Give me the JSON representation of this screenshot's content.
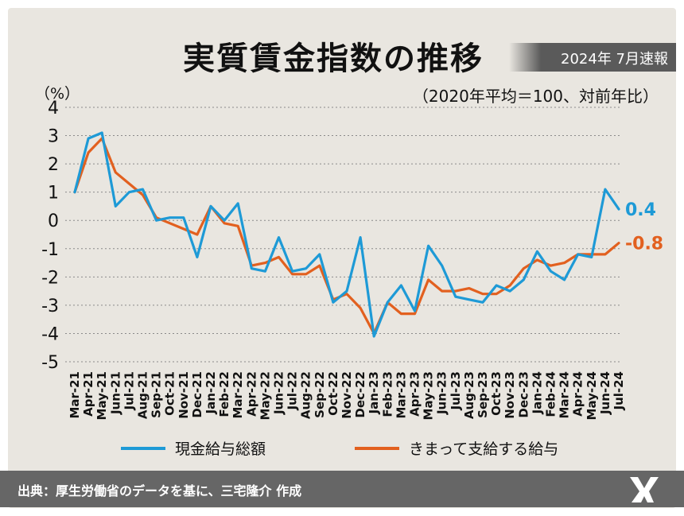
{
  "header": {
    "title": "実質賃金指数の推移",
    "badge": "2024年 7月速報",
    "subtitle": "（2020年平均＝100、対前年比）"
  },
  "footer": {
    "source": "出典：厚生労働省のデータを基に、三宅隆介 作成"
  },
  "colors": {
    "background": "#e9e6e0",
    "series_blue": "#1e9ad6",
    "series_orange": "#e2601f",
    "footer": "#666666"
  },
  "chart_data": {
    "type": "line",
    "ylabel": "（%）",
    "ylim": [
      -5,
      4
    ],
    "yticks": [
      4,
      3,
      2,
      1,
      0,
      -1,
      -2,
      -3,
      -4,
      -5
    ],
    "grid": "horizontal dashed",
    "legend_position": "bottom",
    "x": [
      "Mar-21",
      "Apr-21",
      "May-21",
      "Jun-21",
      "Jul-21",
      "Aug-21",
      "Sep-21",
      "Oct-21",
      "Nov-21",
      "Dec-21",
      "Jan-22",
      "Feb-22",
      "Mar-22",
      "Apr-22",
      "May-22",
      "Jun-22",
      "Jul-22",
      "Aug-22",
      "Sep-22",
      "Oct-22",
      "Nov-22",
      "Dec-22",
      "Jan-23",
      "Feb-23",
      "Mar-23",
      "Apr-23",
      "May-23",
      "Jun-23",
      "Jul-23",
      "Aug-23",
      "Sep-23",
      "Oct-23",
      "Nov-23",
      "Dec-23",
      "Jan-24",
      "Feb-24",
      "Mar-24",
      "Apr-24",
      "May-24",
      "Jun-24",
      "Jul-24"
    ],
    "series": [
      {
        "name": "現金給与総額",
        "color": "#1e9ad6",
        "end_label": "0.4",
        "values": [
          1.0,
          2.9,
          3.1,
          0.5,
          1.0,
          1.1,
          0.0,
          0.1,
          0.1,
          -1.3,
          0.5,
          0.0,
          0.6,
          -1.7,
          -1.8,
          -0.6,
          -1.8,
          -1.7,
          -1.2,
          -2.9,
          -2.5,
          -0.6,
          -4.1,
          -2.9,
          -2.3,
          -3.2,
          -0.9,
          -1.6,
          -2.7,
          -2.8,
          -2.9,
          -2.3,
          -2.5,
          -2.1,
          -1.1,
          -1.8,
          -2.1,
          -1.2,
          -1.3,
          1.1,
          0.4
        ]
      },
      {
        "name": "きまって支給する給与",
        "color": "#e2601f",
        "end_label": "-0.8",
        "values": [
          1.0,
          2.4,
          2.9,
          1.7,
          1.3,
          0.9,
          0.1,
          -0.1,
          -0.3,
          -0.5,
          0.5,
          -0.1,
          -0.2,
          -1.6,
          -1.5,
          -1.3,
          -1.9,
          -1.9,
          -1.6,
          -2.8,
          -2.6,
          -3.1,
          -4.0,
          -2.9,
          -3.3,
          -3.3,
          -2.1,
          -2.5,
          -2.5,
          -2.4,
          -2.6,
          -2.6,
          -2.3,
          -1.7,
          -1.4,
          -1.6,
          -1.5,
          -1.2,
          -1.2,
          -1.2,
          -0.8
        ]
      }
    ]
  }
}
